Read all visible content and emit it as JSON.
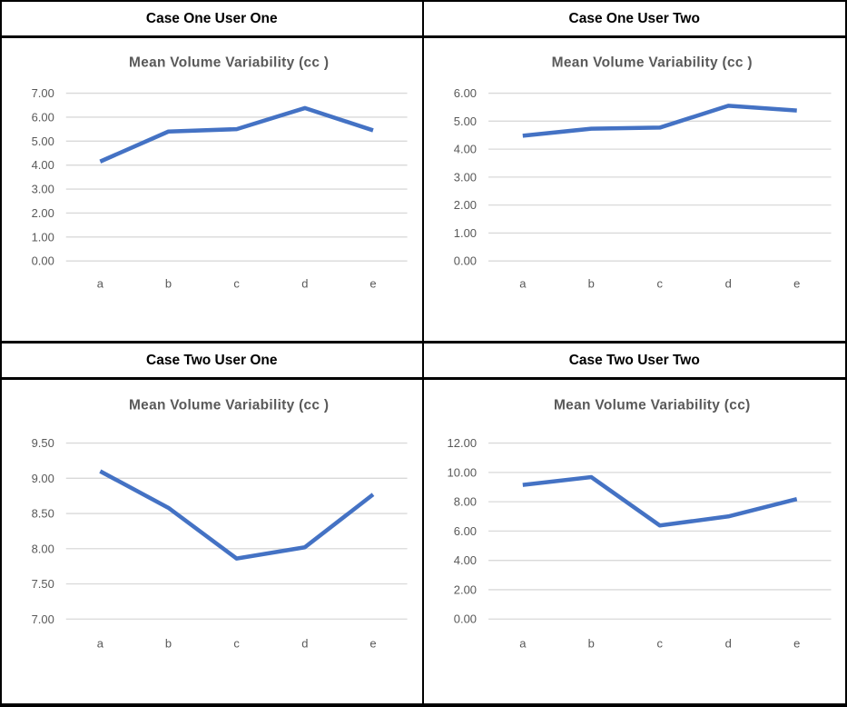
{
  "panels": [
    {
      "header": "Case One User One"
    },
    {
      "header": "Case One User Two"
    },
    {
      "header": "Case Two User One"
    },
    {
      "header": "Case Two User Two"
    }
  ],
  "colors": {
    "line": "#4472C4",
    "gridline": "#D9D9D9",
    "axis_text": "#595959",
    "title_text": "#595959",
    "header_text": "#000000",
    "border": "#000000",
    "background": "#FFFFFF"
  },
  "chart_data": [
    {
      "type": "line",
      "panel": "Case One User One",
      "title": "Mean Volume Variability (cc )",
      "categories": [
        "a",
        "b",
        "c",
        "d",
        "e"
      ],
      "values": [
        4.15,
        5.4,
        5.5,
        6.38,
        5.45
      ],
      "ylim": [
        0,
        7
      ],
      "ytick_step": 1,
      "ytick_labels": [
        "0.00",
        "1.00",
        "2.00",
        "3.00",
        "4.00",
        "5.00",
        "6.00",
        "7.00"
      ],
      "grid": true,
      "legend": "none"
    },
    {
      "type": "line",
      "panel": "Case One User Two",
      "title": "Mean Volume Variability (cc )",
      "categories": [
        "a",
        "b",
        "c",
        "d",
        "e"
      ],
      "values": [
        4.48,
        4.73,
        4.77,
        5.55,
        5.38
      ],
      "ylim": [
        0,
        6
      ],
      "ytick_step": 1,
      "ytick_labels": [
        "0.00",
        "1.00",
        "2.00",
        "3.00",
        "4.00",
        "5.00",
        "6.00"
      ],
      "grid": true,
      "legend": "none"
    },
    {
      "type": "line",
      "panel": "Case Two User One",
      "title": "Mean Volume Variability (cc )",
      "categories": [
        "a",
        "b",
        "c",
        "d",
        "e"
      ],
      "values": [
        9.1,
        8.58,
        7.86,
        8.02,
        8.77
      ],
      "ylim": [
        7,
        9.5
      ],
      "ytick_step": 0.5,
      "ytick_labels": [
        "7.00",
        "7.50",
        "8.00",
        "8.50",
        "9.00",
        "9.50"
      ],
      "grid": true,
      "legend": "none"
    },
    {
      "type": "line",
      "panel": "Case Two User Two",
      "title": "Mean Volume Variability (cc)",
      "categories": [
        "a",
        "b",
        "c",
        "d",
        "e"
      ],
      "values": [
        9.15,
        9.68,
        6.38,
        7.0,
        8.18
      ],
      "ylim": [
        0,
        12
      ],
      "ytick_step": 2,
      "ytick_labels": [
        "0.00",
        "2.00",
        "4.00",
        "6.00",
        "8.00",
        "10.00",
        "12.00"
      ],
      "grid": true,
      "legend": "none"
    }
  ]
}
